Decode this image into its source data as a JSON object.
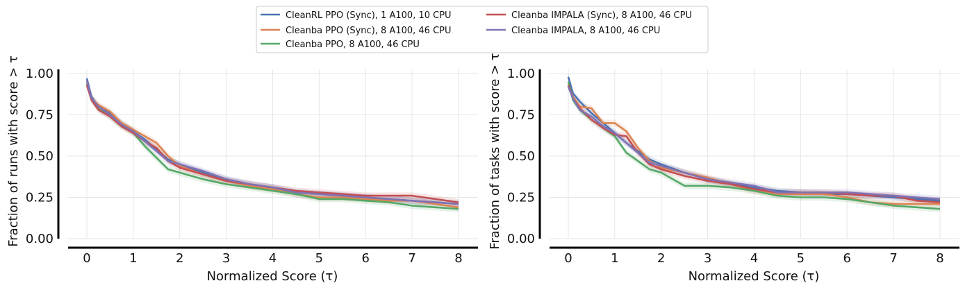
{
  "legend": {
    "entries": [
      {
        "name": "CleanRL PPO (Sync), 1 A100, 10 CPU",
        "color": "#4c72b0"
      },
      {
        "name": "Cleanba PPO (Sync), 8 A100, 46 CPU",
        "color": "#dd8452"
      },
      {
        "name": "Cleanba PPO, 8 A100, 46 CPU",
        "color": "#55a868"
      },
      {
        "name": "Cleanba IMPALA (Sync), 8 A100, 46 CPU",
        "color": "#c44e52"
      },
      {
        "name": "Cleanba IMPALA, 8 A100, 46 CPU",
        "color": "#8172b3"
      }
    ]
  },
  "chart_data": [
    {
      "type": "line",
      "title": "",
      "xlabel": "Normalized Score (τ)",
      "ylabel": "Fraction of runs with score > τ",
      "xlim": [
        0,
        8
      ],
      "ylim": [
        0,
        1
      ],
      "xticks": [
        "0",
        "1",
        "2",
        "3",
        "4",
        "5",
        "6",
        "7",
        "8"
      ],
      "yticks": [
        "0.00",
        "0.25",
        "0.50",
        "0.75",
        "1.00"
      ],
      "grid": true,
      "confidence_bands": true,
      "x": [
        0,
        0.1,
        0.25,
        0.5,
        0.75,
        1.0,
        1.25,
        1.5,
        1.75,
        2.0,
        2.5,
        3.0,
        3.5,
        4.0,
        4.5,
        5.0,
        5.5,
        6.0,
        6.5,
        7.0,
        7.5,
        8.0
      ],
      "series": [
        {
          "name": "CleanRL PPO (Sync), 1 A100, 10 CPU",
          "values": [
            0.97,
            0.86,
            0.8,
            0.76,
            0.7,
            0.65,
            0.6,
            0.54,
            0.48,
            0.45,
            0.4,
            0.36,
            0.33,
            0.31,
            0.28,
            0.27,
            0.26,
            0.25,
            0.24,
            0.23,
            0.22,
            0.21
          ]
        },
        {
          "name": "Cleanba PPO (Sync), 8 A100, 46 CPU",
          "values": [
            0.95,
            0.85,
            0.81,
            0.77,
            0.7,
            0.66,
            0.62,
            0.58,
            0.5,
            0.44,
            0.39,
            0.35,
            0.32,
            0.3,
            0.27,
            0.25,
            0.25,
            0.24,
            0.23,
            0.23,
            0.21,
            0.19
          ]
        },
        {
          "name": "Cleanba PPO, 8 A100, 46 CPU",
          "values": [
            0.94,
            0.84,
            0.79,
            0.74,
            0.68,
            0.64,
            0.56,
            0.49,
            0.42,
            0.4,
            0.36,
            0.33,
            0.31,
            0.29,
            0.27,
            0.24,
            0.24,
            0.23,
            0.22,
            0.2,
            0.19,
            0.18
          ]
        },
        {
          "name": "Cleanba IMPALA (Sync), 8 A100, 46 CPU",
          "values": [
            0.93,
            0.84,
            0.78,
            0.74,
            0.68,
            0.64,
            0.59,
            0.55,
            0.47,
            0.43,
            0.39,
            0.35,
            0.33,
            0.31,
            0.29,
            0.28,
            0.27,
            0.26,
            0.26,
            0.26,
            0.24,
            0.22
          ]
        },
        {
          "name": "Cleanba IMPALA, 8 A100, 46 CPU",
          "values": [
            0.96,
            0.85,
            0.8,
            0.75,
            0.69,
            0.65,
            0.59,
            0.53,
            0.47,
            0.45,
            0.41,
            0.36,
            0.33,
            0.31,
            0.28,
            0.27,
            0.26,
            0.25,
            0.24,
            0.23,
            0.22,
            0.21
          ]
        }
      ]
    },
    {
      "type": "line",
      "title": "",
      "xlabel": "Normalized Score (τ)",
      "ylabel": "Fraction of tasks with score > τ",
      "xlim": [
        0,
        8
      ],
      "ylim": [
        0,
        1
      ],
      "xticks": [
        "0",
        "1",
        "2",
        "3",
        "4",
        "5",
        "6",
        "7",
        "8"
      ],
      "yticks": [
        "0.00",
        "0.25",
        "0.50",
        "0.75",
        "1.00"
      ],
      "grid": true,
      "confidence_bands": true,
      "x": [
        0,
        0.1,
        0.25,
        0.5,
        0.75,
        1.0,
        1.25,
        1.5,
        1.75,
        2.0,
        2.5,
        3.0,
        3.5,
        4.0,
        4.5,
        5.0,
        5.5,
        6.0,
        6.5,
        7.0,
        7.5,
        8.0
      ],
      "series": [
        {
          "name": "CleanRL PPO (Sync), 1 A100, 10 CPU",
          "values": [
            0.98,
            0.88,
            0.83,
            0.76,
            0.7,
            0.64,
            0.58,
            0.53,
            0.48,
            0.45,
            0.4,
            0.36,
            0.33,
            0.31,
            0.29,
            0.28,
            0.27,
            0.27,
            0.26,
            0.25,
            0.24,
            0.23
          ]
        },
        {
          "name": "Cleanba PPO (Sync), 8 A100, 46 CPU",
          "values": [
            0.93,
            0.86,
            0.8,
            0.79,
            0.7,
            0.7,
            0.65,
            0.55,
            0.47,
            0.43,
            0.4,
            0.37,
            0.33,
            0.29,
            0.27,
            0.27,
            0.27,
            0.25,
            0.22,
            0.21,
            0.21,
            0.21
          ]
        },
        {
          "name": "Cleanba PPO, 8 A100, 46 CPU",
          "values": [
            0.95,
            0.84,
            0.78,
            0.72,
            0.67,
            0.62,
            0.52,
            0.47,
            0.42,
            0.4,
            0.32,
            0.32,
            0.31,
            0.29,
            0.26,
            0.25,
            0.25,
            0.24,
            0.22,
            0.2,
            0.19,
            0.18
          ]
        },
        {
          "name": "Cleanba IMPALA (Sync), 8 A100, 46 CPU",
          "values": [
            0.93,
            0.85,
            0.79,
            0.72,
            0.67,
            0.63,
            0.62,
            0.52,
            0.45,
            0.42,
            0.38,
            0.35,
            0.33,
            0.3,
            0.28,
            0.28,
            0.28,
            0.27,
            0.26,
            0.26,
            0.23,
            0.22
          ]
        },
        {
          "name": "Cleanba IMPALA, 8 A100, 46 CPU",
          "values": [
            0.92,
            0.85,
            0.78,
            0.74,
            0.68,
            0.64,
            0.58,
            0.52,
            0.46,
            0.44,
            0.4,
            0.36,
            0.34,
            0.32,
            0.28,
            0.28,
            0.28,
            0.28,
            0.27,
            0.26,
            0.25,
            0.24
          ]
        }
      ]
    }
  ]
}
